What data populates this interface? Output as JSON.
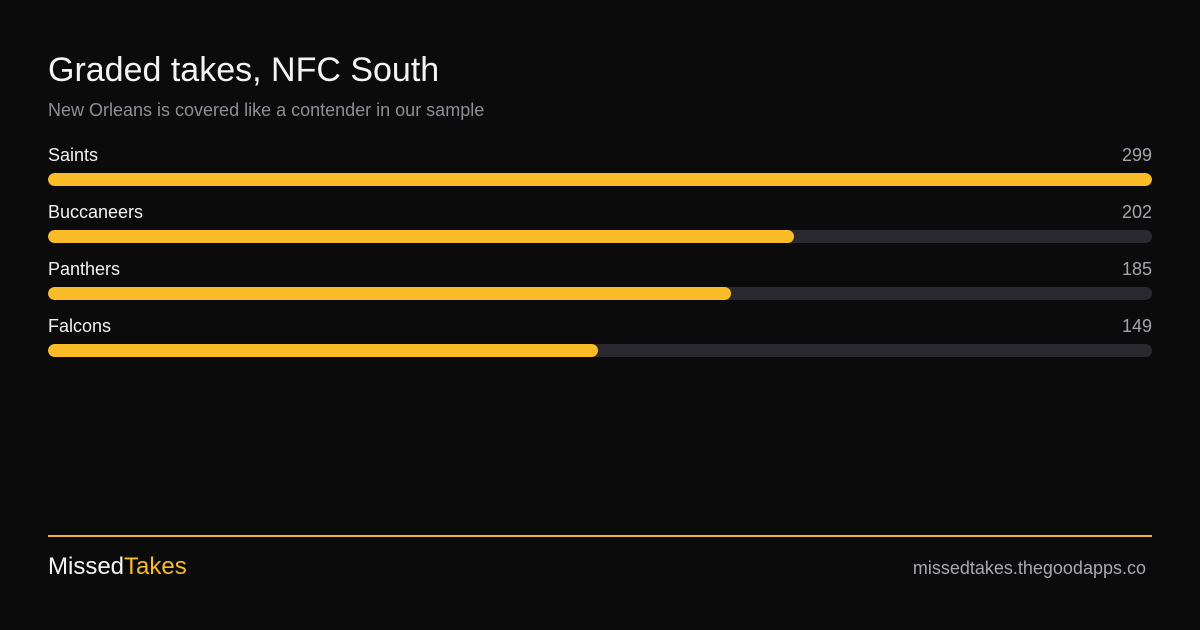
{
  "header": {
    "title": "Graded takes, NFC South",
    "subtitle": "New Orleans is covered like a contender in our sample"
  },
  "chart_data": {
    "type": "bar",
    "orientation": "horizontal",
    "title": "Graded takes, NFC South",
    "subtitle": "New Orleans is covered like a contender in our sample",
    "categories": [
      "Saints",
      "Buccaneers",
      "Panthers",
      "Falcons"
    ],
    "values": [
      299,
      202,
      185,
      149
    ],
    "xlim": [
      0,
      299
    ],
    "grid": false,
    "legend": "none",
    "bar_color": "#fabd28",
    "track_color": "#2b2930"
  },
  "footer": {
    "brand_first": "Missed",
    "brand_second": "Takes",
    "site": "missedtakes.thegoodapps.co"
  },
  "colors": {
    "background": "#0b0b0b",
    "accent": "#fabd28",
    "divider": "#f2b12f",
    "muted_text": "#8e8e96"
  }
}
